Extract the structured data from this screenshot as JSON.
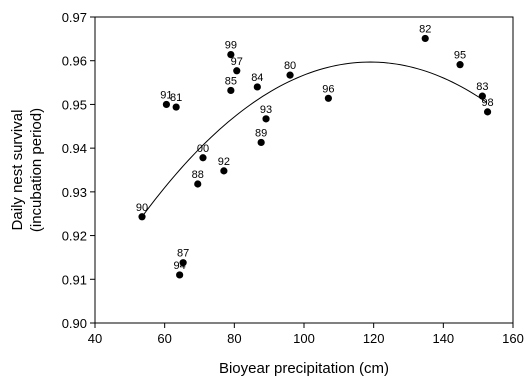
{
  "chart_data": {
    "type": "scatter",
    "title": "",
    "xlabel": "Bioyear precipitation (cm)",
    "ylabel_lines": [
      "Daily nest survival",
      "(incubation period)"
    ],
    "xlim": [
      40,
      160
    ],
    "ylim": [
      0.9,
      0.97
    ],
    "xticks": [
      40,
      60,
      80,
      100,
      120,
      140,
      160
    ],
    "yticks": [
      0.9,
      0.91,
      0.92,
      0.93,
      0.94,
      0.95,
      0.96,
      0.97
    ],
    "xtick_labels": [
      "40",
      "60",
      "80",
      "100",
      "120",
      "140",
      "160"
    ],
    "ytick_labels": [
      "0.90",
      "0.91",
      "0.92",
      "0.93",
      "0.94",
      "0.95",
      "0.96",
      "0.97"
    ],
    "grid": false,
    "points": [
      {
        "label": "90",
        "x": 53.5,
        "y": 0.9243
      },
      {
        "label": "91",
        "x": 60.5,
        "y": 0.95
      },
      {
        "label": "81",
        "x": 63.3,
        "y": 0.9494
      },
      {
        "label": "87",
        "x": 65.3,
        "y": 0.9138
      },
      {
        "label": "94",
        "x": 64.3,
        "y": 0.911
      },
      {
        "label": "88",
        "x": 69.5,
        "y": 0.9318
      },
      {
        "label": "00",
        "x": 71.0,
        "y": 0.9378
      },
      {
        "label": "92",
        "x": 77.0,
        "y": 0.9348
      },
      {
        "label": "85",
        "x": 79.0,
        "y": 0.9532
      },
      {
        "label": "99",
        "x": 79.0,
        "y": 0.9614
      },
      {
        "label": "97",
        "x": 80.7,
        "y": 0.9577
      },
      {
        "label": "84",
        "x": 86.6,
        "y": 0.954
      },
      {
        "label": "89",
        "x": 87.7,
        "y": 0.9413
      },
      {
        "label": "93",
        "x": 89.1,
        "y": 0.9467
      },
      {
        "label": "80",
        "x": 96.0,
        "y": 0.9567
      },
      {
        "label": "96",
        "x": 107.0,
        "y": 0.9514
      },
      {
        "label": "82",
        "x": 134.8,
        "y": 0.9651
      },
      {
        "label": "95",
        "x": 144.8,
        "y": 0.9591
      },
      {
        "label": "83",
        "x": 151.2,
        "y": 0.9519
      },
      {
        "label": "98",
        "x": 152.7,
        "y": 0.9483
      }
    ],
    "fit_curve": {
      "type": "quadratic",
      "x_range": [
        53.5,
        152.5
      ],
      "vertex": [
        119,
        0.9597
      ],
      "through": [
        53.5,
        0.9243
      ]
    }
  }
}
